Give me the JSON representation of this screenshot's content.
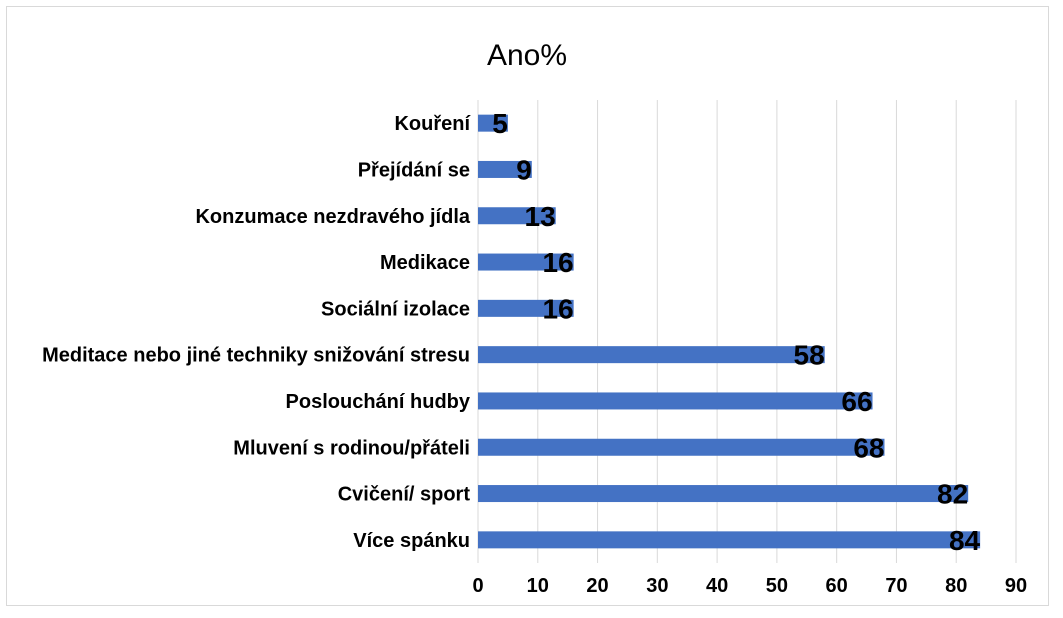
{
  "chart_data": {
    "type": "bar",
    "orientation": "horizontal",
    "title": "Ano%",
    "xlabel": "",
    "ylabel": "",
    "categories": [
      "Kouření",
      "Přejídání se",
      "Konzumace nezdravého jídla",
      "Medikace",
      "Sociální izolace",
      "Meditace nebo jiné techniky snižování stresu",
      "Poslouchání hudby",
      "Mluvení s rodinou/přáteli",
      "Cvičení/ sport",
      "Více spánku"
    ],
    "values": [
      5,
      9,
      13,
      16,
      16,
      58,
      66,
      68,
      82,
      84
    ],
    "xlim": [
      0,
      90
    ],
    "xticks": [
      0,
      10,
      20,
      30,
      40,
      50,
      60,
      70,
      80,
      90
    ],
    "grid": true,
    "legend": "none",
    "bar_color": "#4472C4"
  }
}
